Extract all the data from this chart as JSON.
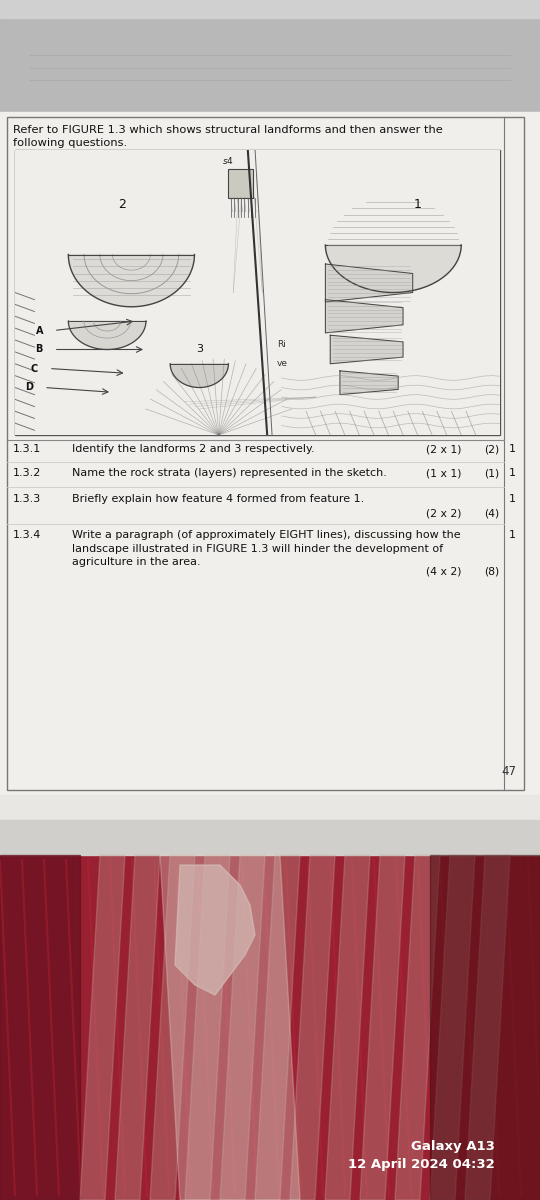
{
  "bg_top_color": "#c0c0c0",
  "bg_paper_color": "#f2f1ee",
  "paper_border_color": "#888888",
  "text_color": "#222222",
  "header_text": "Refer to FIGURE 1.3 which shows structural landforms and then answer the\nfollowing questions.",
  "questions": [
    {
      "number": "1.3.1",
      "text": "Identify the landforms 2 and 3 respectively.",
      "marks_inline": "(2 x 1)",
      "marks": "(2)",
      "right_mark": "1"
    },
    {
      "number": "1.3.2",
      "text": "Name the rock strata (layers) represented in the sketch.",
      "marks_inline": "(1 x 1)",
      "marks": "(1)",
      "right_mark": "1"
    },
    {
      "number": "1.3.3",
      "text": "Briefly explain how feature 4 formed from feature 1.",
      "marks_inline": "(2 x 2)",
      "marks": "(4)",
      "right_mark": "1"
    },
    {
      "number": "1.3.4",
      "text": "Write a paragraph (of approximately EIGHT lines), discussing how the\nlandscape illustrated in FIGURE 1.3 will hinder the development of\nagriculture in the area.",
      "marks_inline": "(4 x 2)",
      "marks": "(8)",
      "right_mark": "1"
    }
  ],
  "page_number": "47",
  "watermark_line1": "Galaxy A13",
  "watermark_line2": "12 April 2024 04:32",
  "fig_bg": "#f5f4f0",
  "fig_line_color": "#444444",
  "fig_light_line": "#999999"
}
